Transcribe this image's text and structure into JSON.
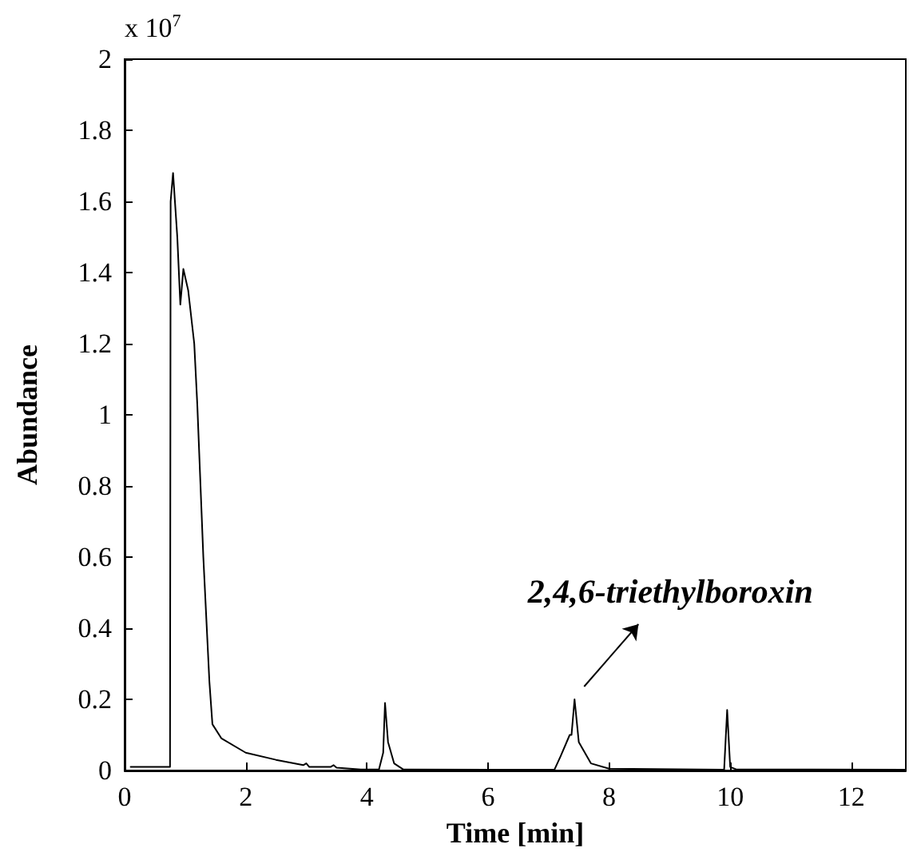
{
  "chart_data": {
    "type": "line",
    "xlabel": "Time [min]",
    "ylabel": "Abundance",
    "annotations": [
      "x 10$^{7}$",
      {
        "text": "2,4,6-triethylboroxin",
        "x": 7.43,
        "y": 0.2
      }
    ],
    "xlim": [
      0,
      12.9
    ],
    "xticks": [
      0,
      2,
      4,
      6,
      8,
      10,
      12
    ],
    "ylim": [
      0,
      2
    ],
    "yticks": [
      0,
      0.2,
      0.4,
      0.6,
      0.8,
      1,
      1.2,
      1.4,
      1.6,
      1.8,
      2
    ],
    "grid": false,
    "marker": "none",
    "line_style": "solid",
    "series": [
      {
        "color": "#000000",
        "x": [
          0.1,
          0.75,
          0.76,
          0.8,
          0.87,
          0.92,
          0.97,
          1.05,
          1.15,
          1.2,
          1.3,
          1.4,
          1.45,
          1.6,
          2.0,
          2.5,
          2.95,
          3.0,
          3.05,
          3.4,
          3.45,
          3.5,
          3.9,
          4.2,
          4.27,
          4.3,
          4.35,
          4.45,
          4.6,
          6.0,
          7.1,
          7.2,
          7.35,
          7.38,
          7.43,
          7.5,
          7.7,
          8.0,
          9.9,
          9.95,
          10.0,
          10.1,
          12.9
        ],
        "values": [
          0.01,
          0.01,
          1.6,
          1.68,
          1.5,
          1.31,
          1.41,
          1.35,
          1.2,
          1.03,
          0.6,
          0.25,
          0.13,
          0.09,
          0.05,
          0.03,
          0.015,
          0.02,
          0.01,
          0.01,
          0.015,
          0.008,
          0.003,
          0.003,
          0.05,
          0.19,
          0.08,
          0.02,
          0.003,
          0.002,
          0.003,
          0.04,
          0.1,
          0.1,
          0.2,
          0.08,
          0.02,
          0.005,
          0.002,
          0.17,
          0.01,
          0.003,
          0.002
        ]
      }
    ]
  }
}
